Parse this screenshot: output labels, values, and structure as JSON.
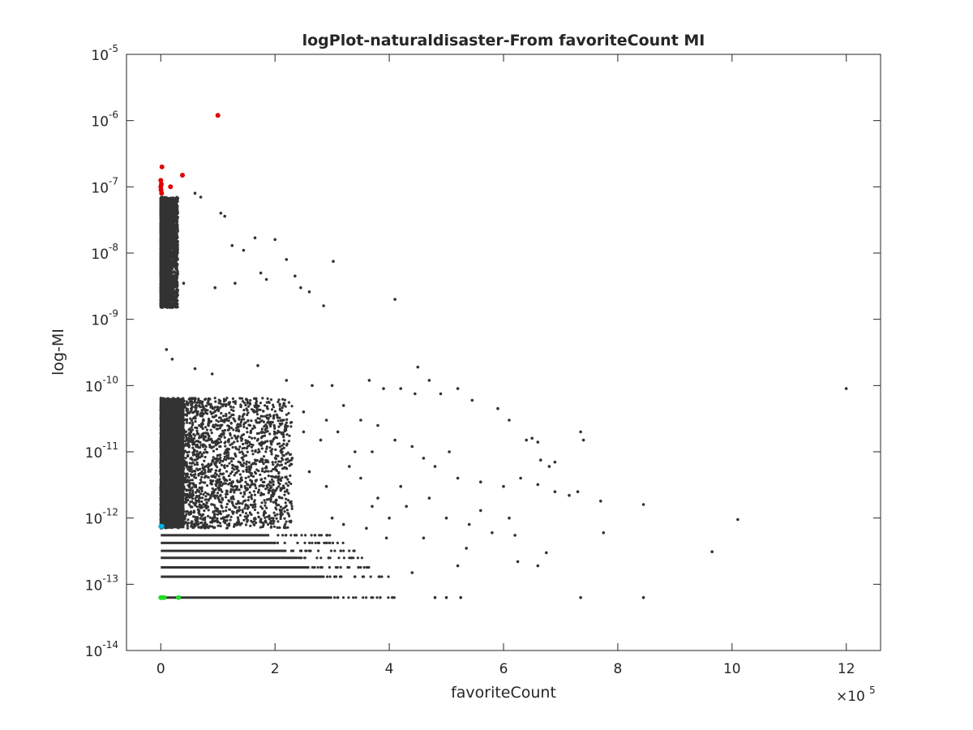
{
  "chart_data": {
    "type": "scatter",
    "title": "logPlot-naturaldisaster-From favoriteCount MI",
    "xlabel": "favoriteCount",
    "ylabel": "log-MI",
    "x_multiplier": {
      "base": "×10",
      "exponent": "5"
    },
    "xlim": [
      -60000,
      1260000
    ],
    "ylim": [
      1e-14,
      1e-05
    ],
    "yscale": "log",
    "grid": false,
    "legend": "none",
    "xticks": [
      0,
      200000,
      400000,
      600000,
      800000,
      1000000,
      1200000
    ],
    "xtick_labels": [
      "0",
      "2",
      "4",
      "6",
      "8",
      "10",
      "12"
    ],
    "yticks": [
      1e-14,
      1e-13,
      1e-12,
      1e-11,
      1e-10,
      1e-09,
      1e-08,
      1e-07,
      1e-06,
      1e-05
    ],
    "ytick_labels": [
      {
        "base": "10",
        "exp": "-14"
      },
      {
        "base": "10",
        "exp": "-13"
      },
      {
        "base": "10",
        "exp": "-12"
      },
      {
        "base": "10",
        "exp": "-11"
      },
      {
        "base": "10",
        "exp": "-10"
      },
      {
        "base": "10",
        "exp": "-9"
      },
      {
        "base": "10",
        "exp": "-8"
      },
      {
        "base": "10",
        "exp": "-7"
      },
      {
        "base": "10",
        "exp": "-6"
      },
      {
        "base": "10",
        "exp": "-5"
      }
    ],
    "series": [
      {
        "color": "#333333",
        "points": [
          [
            0,
            5e-09
          ],
          [
            3000,
            1e-08
          ],
          [
            8000,
            2e-08
          ],
          [
            15000,
            6e-09
          ],
          [
            25000,
            4e-09
          ],
          [
            40000,
            3.5e-09
          ],
          [
            60000,
            8e-08
          ],
          [
            70000,
            7e-08
          ],
          [
            105000,
            4e-08
          ],
          [
            112000,
            3.6e-08
          ],
          [
            125000,
            1.3e-08
          ],
          [
            145000,
            1.1e-08
          ],
          [
            165000,
            1.7e-08
          ],
          [
            200000,
            1.6e-08
          ],
          [
            220000,
            8e-09
          ],
          [
            235000,
            4.5e-09
          ],
          [
            245000,
            3e-09
          ],
          [
            260000,
            2.6e-09
          ],
          [
            285000,
            1.6e-09
          ],
          [
            302000,
            7.5e-09
          ],
          [
            410000,
            2e-09
          ],
          [
            175000,
            5e-09
          ],
          [
            185000,
            4e-09
          ],
          [
            130000,
            3.5e-09
          ],
          [
            95000,
            3e-09
          ],
          [
            10000,
            3.5e-10
          ],
          [
            20000,
            2.5e-10
          ],
          [
            60000,
            1.8e-10
          ],
          [
            90000,
            1.5e-10
          ],
          [
            170000,
            2e-10
          ],
          [
            220000,
            1.2e-10
          ],
          [
            265000,
            1e-10
          ],
          [
            300000,
            1e-10
          ],
          [
            365000,
            1.2e-10
          ],
          [
            390000,
            9e-11
          ],
          [
            450000,
            1.9e-10
          ],
          [
            470000,
            1.2e-10
          ],
          [
            420000,
            9e-11
          ],
          [
            490000,
            7.5e-11
          ],
          [
            445000,
            7.5e-11
          ],
          [
            520000,
            9e-11
          ],
          [
            545000,
            6e-11
          ],
          [
            590000,
            4.5e-11
          ],
          [
            610000,
            3e-11
          ],
          [
            640000,
            1.5e-11
          ],
          [
            650000,
            1.6e-11
          ],
          [
            660000,
            1.4e-11
          ],
          [
            735000,
            2e-11
          ],
          [
            740000,
            1.5e-11
          ],
          [
            665000,
            7.5e-12
          ],
          [
            680000,
            6e-12
          ],
          [
            690000,
            7e-12
          ],
          [
            560000,
            3.5e-12
          ],
          [
            600000,
            3e-12
          ],
          [
            630000,
            4e-12
          ],
          [
            660000,
            3.2e-12
          ],
          [
            690000,
            2.5e-12
          ],
          [
            715000,
            2.2e-12
          ],
          [
            730000,
            2.5e-12
          ],
          [
            770000,
            1.8e-12
          ],
          [
            845000,
            1.6e-12
          ],
          [
            1010000,
            9.5e-13
          ],
          [
            775000,
            6e-13
          ],
          [
            610000,
            1e-12
          ],
          [
            620000,
            5.5e-13
          ],
          [
            675000,
            3e-13
          ],
          [
            660000,
            1.9e-13
          ],
          [
            965000,
            3.1e-13
          ],
          [
            625000,
            2.2e-13
          ],
          [
            520000,
            1.9e-13
          ],
          [
            440000,
            1.5e-13
          ],
          [
            535000,
            3.5e-13
          ],
          [
            460000,
            5e-13
          ],
          [
            1200000,
            9e-11
          ],
          [
            735000,
            6.3e-14
          ],
          [
            845000,
            6.3e-14
          ],
          [
            525000,
            6.3e-14
          ],
          [
            480000,
            6.3e-14
          ],
          [
            500000,
            6.3e-14
          ],
          [
            230000,
            8e-12
          ],
          [
            260000,
            5e-12
          ],
          [
            290000,
            3e-12
          ],
          [
            330000,
            6e-12
          ],
          [
            350000,
            4e-12
          ],
          [
            380000,
            2e-12
          ],
          [
            400000,
            1e-12
          ],
          [
            420000,
            3e-12
          ],
          [
            430000,
            1.5e-12
          ],
          [
            470000,
            2e-12
          ],
          [
            500000,
            1e-12
          ],
          [
            520000,
            4e-12
          ],
          [
            540000,
            8e-13
          ],
          [
            560000,
            1.3e-12
          ],
          [
            580000,
            6e-13
          ],
          [
            300000,
            1e-12
          ],
          [
            320000,
            8e-13
          ],
          [
            360000,
            7e-13
          ],
          [
            370000,
            1.5e-12
          ],
          [
            395000,
            5e-13
          ],
          [
            250000,
            2e-11
          ],
          [
            280000,
            1.5e-11
          ],
          [
            310000,
            2e-11
          ],
          [
            340000,
            1e-11
          ],
          [
            370000,
            1e-11
          ],
          [
            250000,
            4e-11
          ],
          [
            290000,
            3e-11
          ],
          [
            320000,
            5e-11
          ],
          [
            350000,
            3e-11
          ],
          [
            380000,
            2.5e-11
          ],
          [
            410000,
            1.5e-11
          ],
          [
            440000,
            1.2e-11
          ],
          [
            460000,
            8e-12
          ],
          [
            480000,
            6e-12
          ],
          [
            505000,
            1e-11
          ]
        ]
      },
      {
        "color": "#333333",
        "band": true,
        "x_range": [
          0,
          230000
        ],
        "y_range": [
          7e-13,
          6.5e-11
        ]
      },
      {
        "color": "#333333",
        "rows": [
          {
            "y": 6.3e-14,
            "x_end": 300000
          },
          {
            "y": 1.3e-13,
            "x_end": 280000
          },
          {
            "y": 1.8e-13,
            "x_end": 260000
          },
          {
            "y": 2.5e-13,
            "x_end": 240000
          },
          {
            "y": 3.2e-13,
            "x_end": 220000
          },
          {
            "y": 4.2e-13,
            "x_end": 200000
          },
          {
            "y": 5.5e-13,
            "x_end": 190000
          }
        ]
      },
      {
        "color": "#333333",
        "band": true,
        "x_range": [
          0,
          30000
        ],
        "y_range": [
          1.5e-09,
          7e-08
        ]
      },
      {
        "color": "#e30000",
        "points": [
          [
            100000,
            1.2e-06
          ],
          [
            2000,
            2e-07
          ],
          [
            38000,
            1.5e-07
          ],
          [
            0,
            1.25e-07
          ],
          [
            1000,
            1.1e-07
          ],
          [
            17000,
            1e-07
          ],
          [
            500,
            9e-08
          ],
          [
            1500,
            8e-08
          ],
          [
            0,
            1e-07
          ]
        ]
      },
      {
        "color": "#00b2e6",
        "points": [
          [
            0,
            7.5e-13
          ],
          [
            2000,
            7.5e-13
          ]
        ]
      },
      {
        "color": "#22dd22",
        "points": [
          [
            0,
            6.3e-14
          ],
          [
            3000,
            6.3e-14
          ],
          [
            6000,
            6.3e-14
          ],
          [
            31000,
            6.3e-14
          ]
        ]
      }
    ]
  }
}
